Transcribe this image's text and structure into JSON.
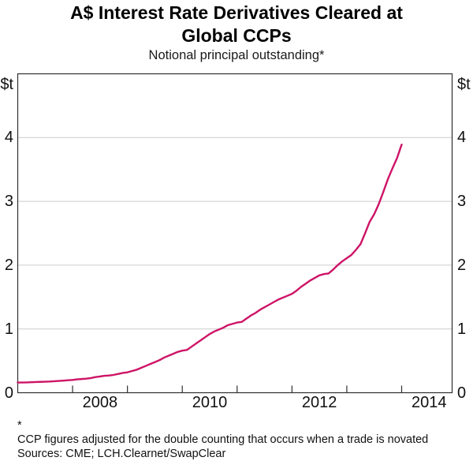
{
  "title_line1": "A$ Interest Rate Derivatives Cleared at",
  "title_line2": "Global CCPs",
  "subtitle": "Notional principal outstanding*",
  "footnote": {
    "marker": "*",
    "text": "CCP figures adjusted for the double counting that occurs when a trade is novated"
  },
  "sources": "Sources: CME; LCH.Clearnet/SwapClear",
  "colors": {
    "line": "#ce1467",
    "grid": "#cccccc",
    "frame": "#2f2f2f",
    "text": "#000000"
  },
  "chart_data": {
    "type": "line",
    "title": "A$ Interest Rate Derivatives Cleared at Global CCPs",
    "subtitle": "Notional principal outstanding*",
    "unit_label": "$t",
    "xlabel": "",
    "ylabel": "$t",
    "xlim": [
      2007.0,
      2014.92
    ],
    "ylim": [
      0,
      5
    ],
    "yticks": [
      0,
      1,
      2,
      3,
      4
    ],
    "ytick_labels": [
      "0",
      "1",
      "2",
      "3",
      "4"
    ],
    "year_ticks": [
      2008,
      2009,
      2010,
      2011,
      2012,
      2013,
      2014
    ],
    "year_labels": [
      {
        "label": "2008",
        "pos": 2008.5
      },
      {
        "label": "2010",
        "pos": 2010.5
      },
      {
        "label": "2012",
        "pos": 2012.5
      },
      {
        "label": "2014",
        "pos": 2014.5
      }
    ],
    "grid": true,
    "legend_position": "none",
    "series": [
      {
        "name": "Notional principal outstanding",
        "color": "#ce1467",
        "start": 2007.0,
        "interval_years": 0.0833333,
        "values": [
          0.16,
          0.16,
          0.162,
          0.165,
          0.168,
          0.17,
          0.172,
          0.175,
          0.18,
          0.185,
          0.19,
          0.195,
          0.2,
          0.21,
          0.215,
          0.22,
          0.23,
          0.245,
          0.255,
          0.265,
          0.27,
          0.28,
          0.295,
          0.31,
          0.32,
          0.34,
          0.36,
          0.39,
          0.42,
          0.45,
          0.48,
          0.51,
          0.55,
          0.58,
          0.61,
          0.64,
          0.66,
          0.67,
          0.72,
          0.77,
          0.82,
          0.87,
          0.92,
          0.96,
          0.99,
          1.02,
          1.06,
          1.08,
          1.1,
          1.11,
          1.16,
          1.21,
          1.25,
          1.3,
          1.34,
          1.38,
          1.42,
          1.46,
          1.49,
          1.52,
          1.55,
          1.6,
          1.66,
          1.71,
          1.76,
          1.8,
          1.84,
          1.86,
          1.87,
          1.93,
          2.0,
          2.06,
          2.11,
          2.16,
          2.24,
          2.33,
          2.5,
          2.68,
          2.8,
          2.96,
          3.15,
          3.35,
          3.52,
          3.68,
          3.89
        ]
      }
    ]
  }
}
